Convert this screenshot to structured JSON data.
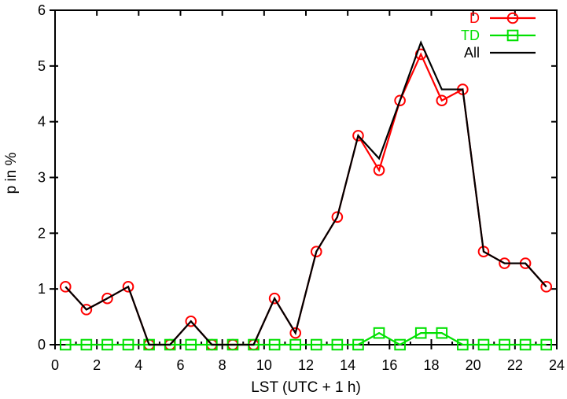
{
  "chart_data": {
    "type": "line",
    "title": "",
    "xlabel": "LST (UTC + 1 h)",
    "ylabel": "p in %",
    "xlim": [
      0,
      24
    ],
    "ylim": [
      0,
      6
    ],
    "grid": false,
    "legend_position": "top-right",
    "x_ticks": {
      "major": [
        0,
        2,
        4,
        6,
        8,
        10,
        12,
        14,
        16,
        18,
        20,
        22,
        24
      ],
      "minor": [
        1,
        3,
        5,
        7,
        9,
        11,
        13,
        15,
        17,
        19,
        21,
        23
      ]
    },
    "y_ticks": [
      0,
      1,
      2,
      3,
      4,
      5,
      6
    ],
    "x": [
      0.5,
      1.5,
      2.5,
      3.5,
      4.5,
      5.5,
      6.5,
      7.5,
      8.5,
      9.5,
      10.5,
      11.5,
      12.5,
      13.5,
      14.5,
      15.5,
      16.5,
      17.5,
      18.5,
      19.5,
      20.5,
      21.5,
      22.5,
      23.5
    ],
    "series": [
      {
        "name": "D",
        "color": "#ff0000",
        "marker": "circle",
        "values": [
          1.04,
          0.63,
          0.83,
          1.04,
          0,
          0,
          0.42,
          0,
          0,
          0,
          0.83,
          0.21,
          1.67,
          2.29,
          3.75,
          3.13,
          4.38,
          5.21,
          4.38,
          4.58,
          1.67,
          1.46,
          1.46,
          1.04
        ]
      },
      {
        "name": "TD",
        "color": "#00e000",
        "marker": "square",
        "values": [
          0,
          0,
          0,
          0,
          0,
          0,
          0,
          0,
          0,
          0,
          0,
          0,
          0,
          0,
          0,
          0.21,
          0,
          0.21,
          0.21,
          0,
          0,
          0,
          0,
          0
        ]
      },
      {
        "name": "All",
        "color": "#000000",
        "marker": "none",
        "values": [
          1.04,
          0.63,
          0.83,
          1.04,
          0,
          0,
          0.42,
          0,
          0,
          0,
          0.83,
          0.21,
          1.67,
          2.29,
          3.75,
          3.34,
          4.38,
          5.42,
          4.58,
          4.58,
          1.67,
          1.46,
          1.46,
          1.04
        ]
      }
    ]
  }
}
